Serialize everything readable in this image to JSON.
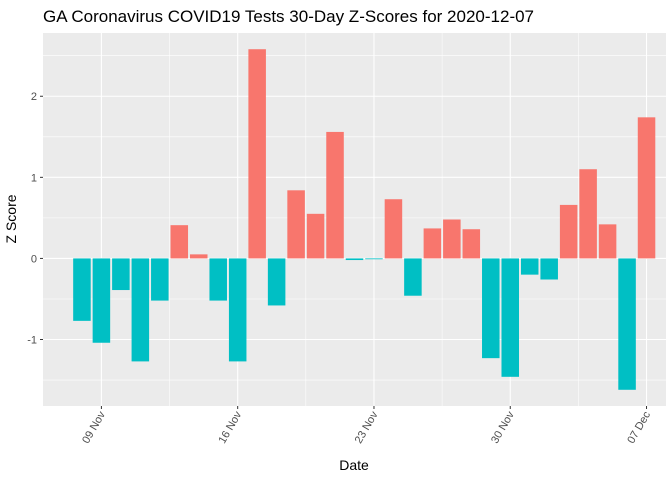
{
  "chart_data": {
    "type": "bar",
    "title": "GA Coronavirus COVID19 Tests 30-Day Z-Scores for 2020-12-07",
    "xlabel": "Date",
    "ylabel": "Z Score",
    "x_ticks": [
      "09 Nov",
      "16 Nov",
      "23 Nov",
      "30 Nov",
      "07 Dec"
    ],
    "x_tick_dates": [
      "2020-11-09",
      "2020-11-16",
      "2020-11-23",
      "2020-11-30",
      "2020-12-07"
    ],
    "y_ticks": [
      -1,
      0,
      1,
      2
    ],
    "ylim": [
      -1.82,
      2.78
    ],
    "xlim": [
      "2020-11-06",
      "2020-12-08"
    ],
    "grid": true,
    "legend": "none",
    "colors": {
      "positive": "#F8766D",
      "negative": "#00BFC4"
    },
    "bars": [
      {
        "date": "2020-11-08",
        "value": -0.77
      },
      {
        "date": "2020-11-09",
        "value": -1.04
      },
      {
        "date": "2020-11-10",
        "value": -0.39
      },
      {
        "date": "2020-11-11",
        "value": -1.27
      },
      {
        "date": "2020-11-12",
        "value": -0.52
      },
      {
        "date": "2020-11-13",
        "value": 0.41
      },
      {
        "date": "2020-11-14",
        "value": 0.05
      },
      {
        "date": "2020-11-15",
        "value": -0.52
      },
      {
        "date": "2020-11-16",
        "value": -1.27
      },
      {
        "date": "2020-11-17",
        "value": 2.58
      },
      {
        "date": "2020-11-18",
        "value": -0.58
      },
      {
        "date": "2020-11-19",
        "value": 0.84
      },
      {
        "date": "2020-11-20",
        "value": 0.55
      },
      {
        "date": "2020-11-21",
        "value": 1.56
      },
      {
        "date": "2020-11-22",
        "value": -0.02
      },
      {
        "date": "2020-11-23",
        "value": -0.01
      },
      {
        "date": "2020-11-24",
        "value": 0.73
      },
      {
        "date": "2020-11-25",
        "value": -0.46
      },
      {
        "date": "2020-11-26",
        "value": 0.37
      },
      {
        "date": "2020-11-27",
        "value": 0.48
      },
      {
        "date": "2020-11-28",
        "value": 0.36
      },
      {
        "date": "2020-11-29",
        "value": -1.23
      },
      {
        "date": "2020-11-30",
        "value": -1.46
      },
      {
        "date": "2020-12-01",
        "value": -0.2
      },
      {
        "date": "2020-12-02",
        "value": -0.26
      },
      {
        "date": "2020-12-03",
        "value": 0.66
      },
      {
        "date": "2020-12-04",
        "value": 1.1
      },
      {
        "date": "2020-12-05",
        "value": 0.42
      },
      {
        "date": "2020-12-06",
        "value": -1.62
      },
      {
        "date": "2020-12-07",
        "value": 1.74
      }
    ]
  }
}
